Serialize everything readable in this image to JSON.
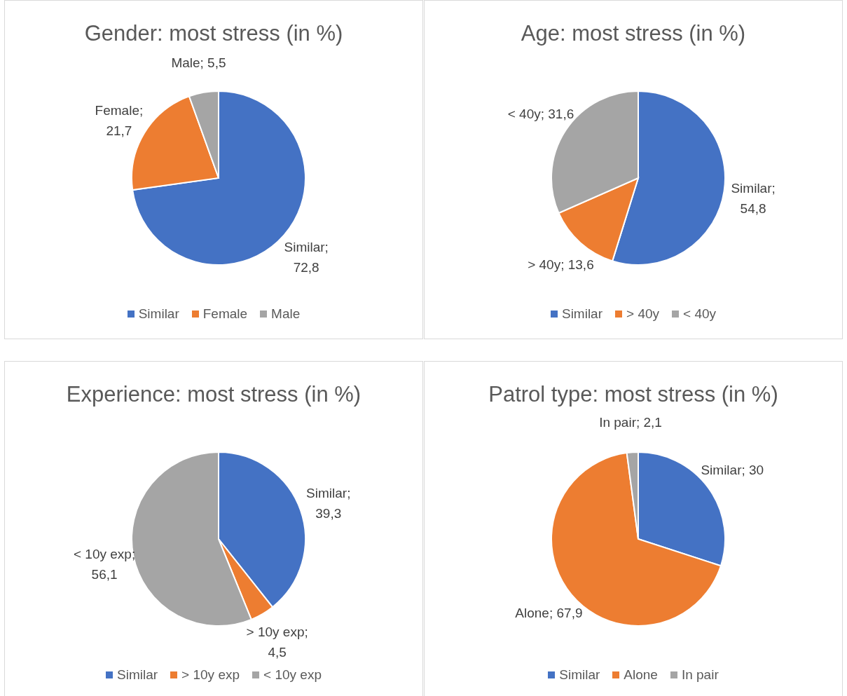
{
  "chart_data": [
    {
      "type": "pie",
      "title": "Gender: most stress (in %)",
      "categories": [
        "Similar",
        "Female",
        "Male"
      ],
      "values": [
        72.8,
        21.7,
        5.5
      ],
      "colors": [
        "#4472c4",
        "#ed7d31",
        "#a5a5a5"
      ],
      "value_labels": [
        "Similar; 72,8",
        "Female; 21,7",
        "Male; 5,5"
      ],
      "legend": "bottom"
    },
    {
      "type": "pie",
      "title": "Age: most stress (in %)",
      "categories": [
        "Similar",
        "> 40y",
        "< 40y"
      ],
      "values": [
        54.8,
        13.6,
        31.6
      ],
      "colors": [
        "#4472c4",
        "#ed7d31",
        "#a5a5a5"
      ],
      "value_labels": [
        "Similar; 54,8",
        "> 40y; 13,6",
        "< 40y; 31,6"
      ],
      "legend": "bottom"
    },
    {
      "type": "pie",
      "title": "Experience: most stress (in %)",
      "categories": [
        "Similar",
        "> 10y exp",
        "< 10y exp"
      ],
      "values": [
        39.3,
        4.5,
        56.1
      ],
      "colors": [
        "#4472c4",
        "#ed7d31",
        "#a5a5a5"
      ],
      "value_labels": [
        "Similar; 39,3",
        "> 10y exp; 4,5",
        "< 10y exp; 56,1"
      ],
      "legend": "bottom"
    },
    {
      "type": "pie",
      "title": "Patrol type: most stress (in %)",
      "categories": [
        "Similar",
        "Alone",
        "In pair"
      ],
      "values": [
        30,
        67.9,
        2.1
      ],
      "colors": [
        "#4472c4",
        "#ed7d31",
        "#a5a5a5"
      ],
      "value_labels": [
        "Similar; 30",
        "Alone; 67,9",
        "In pair; 2,1"
      ],
      "legend": "bottom"
    }
  ]
}
